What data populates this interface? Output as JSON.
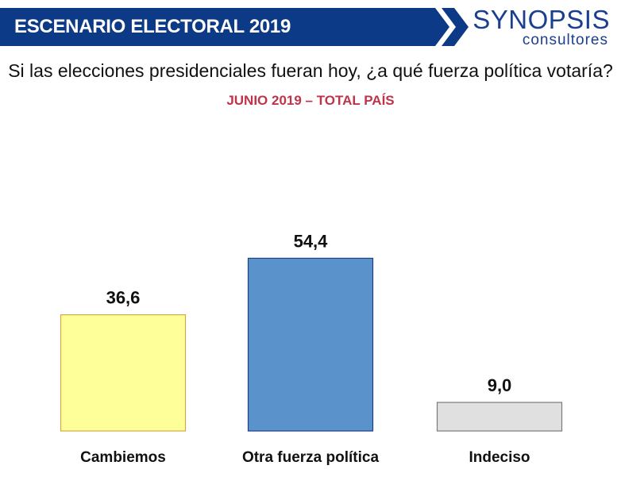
{
  "header": {
    "title": "ESCENARIO ELECTORAL 2019",
    "banner_color": "#0d3a86"
  },
  "logo": {
    "name": "SYNOPSIS",
    "tagline": "consultores",
    "color": "#1b3f8f"
  },
  "question": "Si las elecciones presidenciales fueran hoy, ¿a qué fuerza política votaría?",
  "subtitle": "JUNIO 2019 – TOTAL PAÍS",
  "chart_data": {
    "type": "bar",
    "title": "Si las elecciones presidenciales fueran hoy, ¿a qué fuerza política votaría?",
    "subtitle": "JUNIO 2019 – TOTAL PAÍS",
    "categories": [
      "Cambiemos",
      "Otra fuerza política",
      "Indeciso"
    ],
    "values": [
      36.6,
      54.4,
      9.0
    ],
    "value_labels": [
      "36,6",
      "54,4",
      "9,0"
    ],
    "colors": [
      "#ffff99",
      "#5a93cc",
      "#e0e0e0"
    ],
    "borders": [
      "#d4a94a",
      "#1f3f80",
      "#7a7a7a"
    ],
    "xlabel": "",
    "ylabel": "",
    "ylim": [
      0,
      60
    ],
    "grid": false,
    "legend": "none"
  }
}
